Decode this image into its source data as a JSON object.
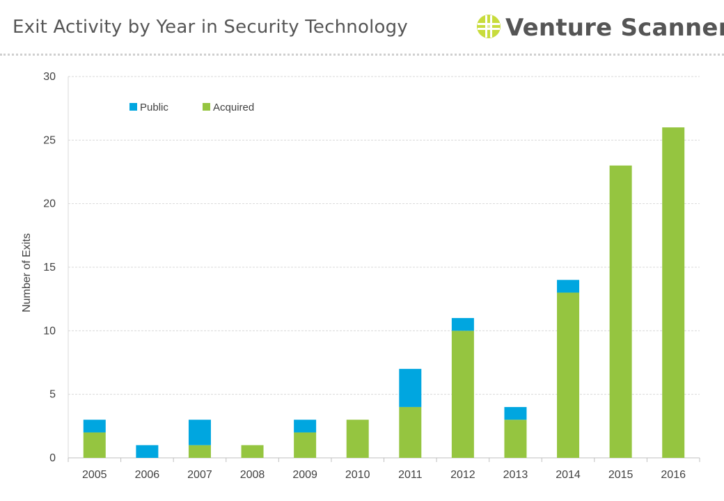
{
  "page": {
    "title": "Exit Activity by Year in Security Technology"
  },
  "brand": {
    "name": "Venture Scanner"
  },
  "colors": {
    "public": "#00a6e0",
    "acquired": "#95c540",
    "grid": "#d9d9d9",
    "text": "#404040"
  },
  "chart_data": {
    "type": "bar",
    "stacked": true,
    "categories": [
      "2005",
      "2006",
      "2007",
      "2008",
      "2009",
      "2010",
      "2011",
      "2012",
      "2013",
      "2014",
      "2015",
      "2016"
    ],
    "series": [
      {
        "name": "Acquired",
        "color": "#95c540",
        "values": [
          2,
          0,
          1,
          1,
          2,
          3,
          4,
          10,
          3,
          13,
          23,
          26
        ]
      },
      {
        "name": "Public",
        "color": "#00a6e0",
        "values": [
          1,
          1,
          2,
          0,
          1,
          0,
          3,
          1,
          1,
          1,
          0,
          0
        ]
      }
    ],
    "legend": [
      "Public",
      "Acquired"
    ],
    "legend_position": "top-left",
    "ylabel": "Number of Exits",
    "xlabel": "",
    "ylim": [
      0,
      30
    ],
    "yticks": [
      0,
      5,
      10,
      15,
      20,
      25,
      30
    ],
    "grid": true
  }
}
